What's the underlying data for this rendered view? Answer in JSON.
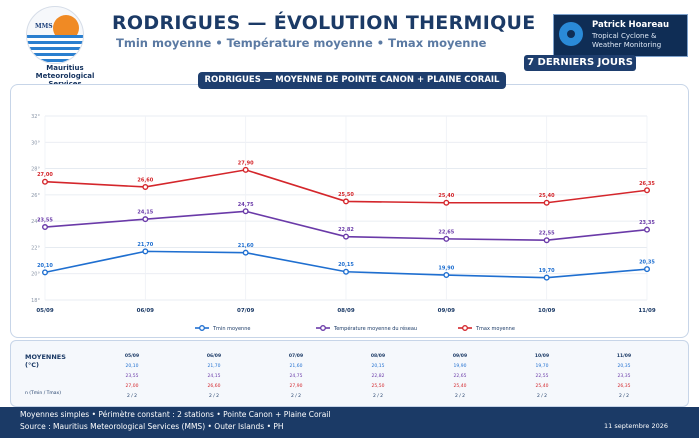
{
  "header": {
    "logo_text": "MMS",
    "logo_name": "Mauritius Meteorological Services",
    "title": "RODRIGUES — ÉVOLUTION THERMIQUE",
    "subtitle": "Tmin moyenne  •  Température moyenne  •  Tmax moyenne",
    "brand_name": "Patrick Hoareau",
    "brand_sub": "Tropical Cyclone & Weather Monitoring",
    "badge": "7 DERNIERS JOURS"
  },
  "chart_header": "RODRIGUES — MOYENNE DE POINTE CANON + PLAINE CORAIL",
  "chart_data": {
    "type": "line",
    "x": [
      "05/09",
      "06/09",
      "07/09",
      "08/09",
      "09/09",
      "10/09",
      "11/09"
    ],
    "ylim": [
      18,
      32
    ],
    "yticks": [
      18,
      20,
      22,
      24,
      26,
      28,
      30,
      32
    ],
    "ytick_labels": [
      "18°",
      "20°",
      "22°",
      "24°",
      "26°",
      "28°",
      "30°",
      "32°"
    ],
    "grid": true,
    "legend_position": "bottom",
    "series": [
      {
        "name": "Tmin moyenne",
        "color": "#1f6fd0",
        "values": [
          20.1,
          21.7,
          21.6,
          20.15,
          19.9,
          19.7,
          20.35
        ],
        "labels": [
          "20,10",
          "21,70",
          "21,60",
          "20,15",
          "19,90",
          "19,70",
          "20,35"
        ]
      },
      {
        "name": "Température moyenne du réseau",
        "color": "#6a3aa8",
        "values": [
          23.55,
          24.15,
          24.75,
          22.82,
          22.65,
          22.55,
          23.35
        ],
        "labels": [
          "23,55",
          "24,15",
          "24,75",
          "22,82",
          "22,65",
          "22,55",
          "23,35"
        ]
      },
      {
        "name": "Tmax moyenne",
        "color": "#d4262b",
        "values": [
          27.0,
          26.6,
          27.9,
          25.5,
          25.4,
          25.4,
          26.35
        ],
        "labels": [
          "27,00",
          "26,60",
          "27,90",
          "25,50",
          "25,40",
          "25,40",
          "26,35"
        ]
      }
    ]
  },
  "table": {
    "title_line1": "MOYENNES",
    "title_line2": "(°C)",
    "note": "n (Tmin / Tmax)",
    "columns": [
      {
        "date": "05/09",
        "tmin": "20,10",
        "tmoy": "23,55",
        "tmax": "27,00",
        "n": "2 / 2"
      },
      {
        "date": "06/09",
        "tmin": "21,70",
        "tmoy": "24,15",
        "tmax": "26,60",
        "n": "2 / 2"
      },
      {
        "date": "07/09",
        "tmin": "21,60",
        "tmoy": "24,75",
        "tmax": "27,90",
        "n": "2 / 2"
      },
      {
        "date": "08/09",
        "tmin": "20,15",
        "tmoy": "22,82",
        "tmax": "25,50",
        "n": "2 / 2"
      },
      {
        "date": "09/09",
        "tmin": "19,90",
        "tmoy": "22,65",
        "tmax": "25,40",
        "n": "2 / 2"
      },
      {
        "date": "10/09",
        "tmin": "19,70",
        "tmoy": "22,55",
        "tmax": "25,40",
        "n": "2 / 2"
      },
      {
        "date": "11/09",
        "tmin": "20,35",
        "tmoy": "23,35",
        "tmax": "26,35",
        "n": "2 / 2"
      }
    ]
  },
  "footer": {
    "line1": "Moyennes simples • Périmètre constant : 2 stations • Pointe Canon + Plaine Corail",
    "line2": "Source : Mauritius Meteorological Services (MMS) • Outer Islands • PH",
    "date": "11 septembre 2026"
  }
}
